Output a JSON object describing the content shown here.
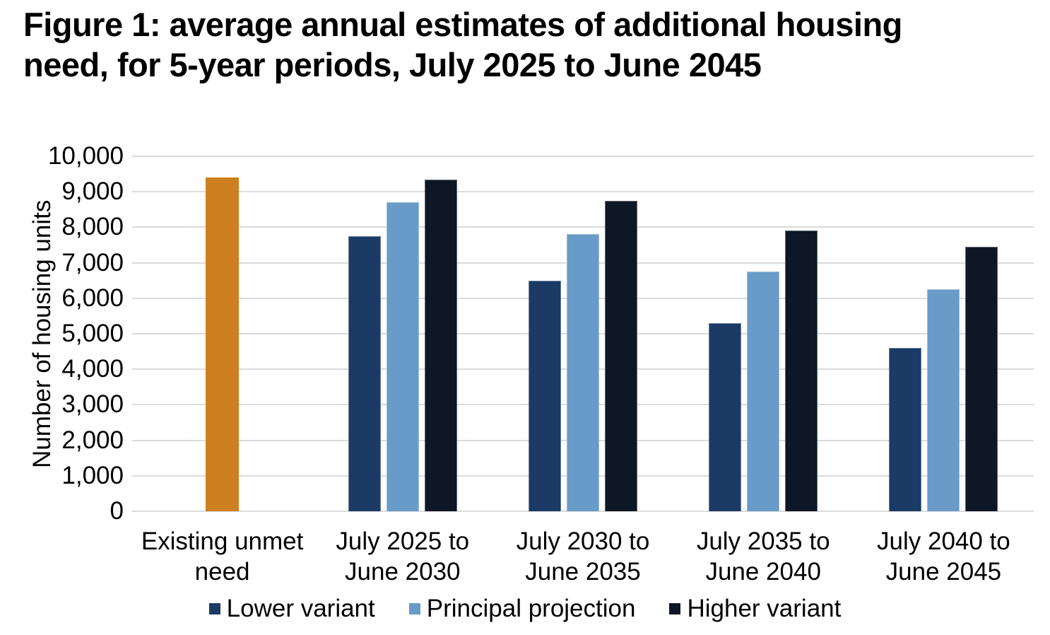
{
  "header": {
    "title_line1": "Figure 1: average annual estimates of additional housing",
    "title_line2": "need, for 5-year periods, July 2025 to June 2045"
  },
  "chart_data": {
    "type": "bar",
    "title": "Figure 1: average annual estimates of additional housing need, for 5-year periods, July 2025 to June 2045",
    "xlabel": "",
    "ylabel": "Number of housing units",
    "ylim": [
      0,
      10000
    ],
    "ygrid_step": 1000,
    "grid": "horizontal",
    "legend_position": "bottom",
    "y_tick_labels": [
      "0",
      "1,000",
      "2,000",
      "3,000",
      "4,000",
      "5,000",
      "6,000",
      "7,000",
      "8,000",
      "9,000",
      "10,000"
    ],
    "categories": [
      "Existing unmet need",
      "July 2025 to June 2030",
      "July 2030 to June 2035",
      "July 2035 to June 2040",
      "July 2040 to June 2045"
    ],
    "category_label_lines": [
      [
        "Existing unmet",
        "need"
      ],
      [
        "July 2025 to",
        "June 2030"
      ],
      [
        "July 2030 to",
        "June 2035"
      ],
      [
        "July 2035 to",
        "June 2040"
      ],
      [
        "July 2040 to",
        "June 2045"
      ]
    ],
    "series": [
      {
        "name": "Existing unmet need",
        "color": "#CE7F1F",
        "in_legend": false,
        "values": [
          9400,
          null,
          null,
          null,
          null
        ]
      },
      {
        "name": "Lower variant",
        "color": "#1B3B66",
        "in_legend": true,
        "values": [
          null,
          7750,
          6500,
          5300,
          4600
        ]
      },
      {
        "name": "Principal projection",
        "color": "#699BC8",
        "in_legend": true,
        "values": [
          null,
          8700,
          7800,
          6750,
          6250
        ]
      },
      {
        "name": "Higher variant",
        "color": "#0E1726",
        "in_legend": true,
        "values": [
          null,
          9350,
          8750,
          7900,
          7450
        ]
      }
    ],
    "legend": [
      "Lower variant",
      "Principal projection",
      "Higher variant"
    ],
    "colors": {
      "unmet_need_bar": "#CE7F1F",
      "lower_variant": "#1B3B66",
      "principal_projection": "#699BC8",
      "higher_variant": "#0E1726",
      "gridline": "#DBDBDB",
      "text": "#000000"
    }
  }
}
